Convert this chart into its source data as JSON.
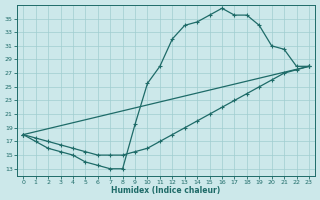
{
  "xlabel": "Humidex (Indice chaleur)",
  "background_color": "#cce8ea",
  "grid_color": "#a0cdd0",
  "line_color": "#1e6b68",
  "xlim": [
    -0.5,
    23.5
  ],
  "ylim": [
    12,
    37
  ],
  "xticks": [
    0,
    1,
    2,
    3,
    4,
    5,
    6,
    7,
    8,
    9,
    10,
    11,
    12,
    13,
    14,
    15,
    16,
    17,
    18,
    19,
    20,
    21,
    22,
    23
  ],
  "yticks": [
    13,
    15,
    17,
    19,
    21,
    23,
    25,
    27,
    29,
    31,
    33,
    35
  ],
  "series1_x": [
    0,
    1,
    2,
    3,
    4,
    5,
    6,
    7,
    8,
    9,
    10,
    11,
    12,
    13,
    14,
    15,
    16,
    17,
    18,
    19,
    20,
    21,
    22,
    23
  ],
  "series1_y": [
    18,
    17,
    16,
    15.5,
    15,
    14,
    13.5,
    13,
    13,
    19.5,
    25.5,
    28,
    32,
    34,
    34.5,
    35.5,
    36.5,
    35.5,
    35.5,
    34,
    31,
    30.5,
    28,
    28
  ],
  "series2_x": [
    0,
    1,
    2,
    3,
    4,
    5,
    6,
    7,
    8,
    9,
    10,
    11,
    12,
    13,
    14,
    15,
    16,
    17,
    18,
    19,
    20,
    21,
    22,
    23
  ],
  "series2_y": [
    18,
    17.5,
    17,
    16.5,
    16,
    15.5,
    15,
    15,
    15,
    15.5,
    16,
    17,
    18,
    19,
    20,
    21,
    22,
    23,
    24,
    25,
    26,
    27,
    27.5,
    28
  ],
  "series3_x": [
    0,
    23
  ],
  "series3_y": [
    18,
    28
  ]
}
